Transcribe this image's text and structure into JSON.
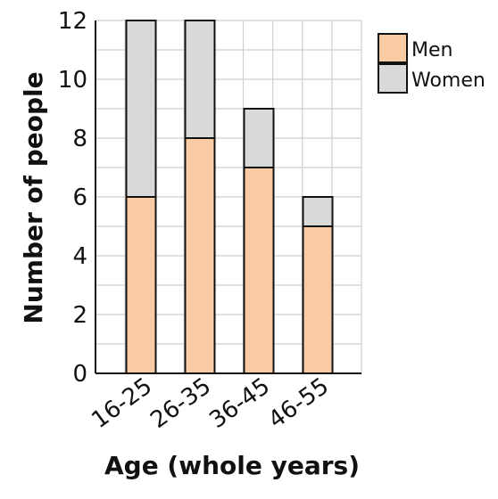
{
  "chart_data": {
    "type": "bar",
    "stacked": true,
    "categories": [
      "16-25",
      "26-35",
      "36-45",
      "46-55"
    ],
    "series": [
      {
        "name": "Men",
        "values": [
          6,
          8,
          7,
          5
        ],
        "color": "#f8cba4"
      },
      {
        "name": "Women",
        "values": [
          6,
          4,
          2,
          1
        ],
        "color": "#d9d9d9"
      }
    ],
    "title": "",
    "xlabel": "Age (whole years)",
    "ylabel": "Number of people",
    "ylim": [
      0,
      12
    ],
    "yticks": [
      0,
      2,
      4,
      6,
      8,
      10,
      12
    ],
    "grid": true,
    "legend": "top-right",
    "colors": {
      "grid": "#cfcfcf",
      "bar_outline": "#111111",
      "text": "#111111"
    }
  }
}
